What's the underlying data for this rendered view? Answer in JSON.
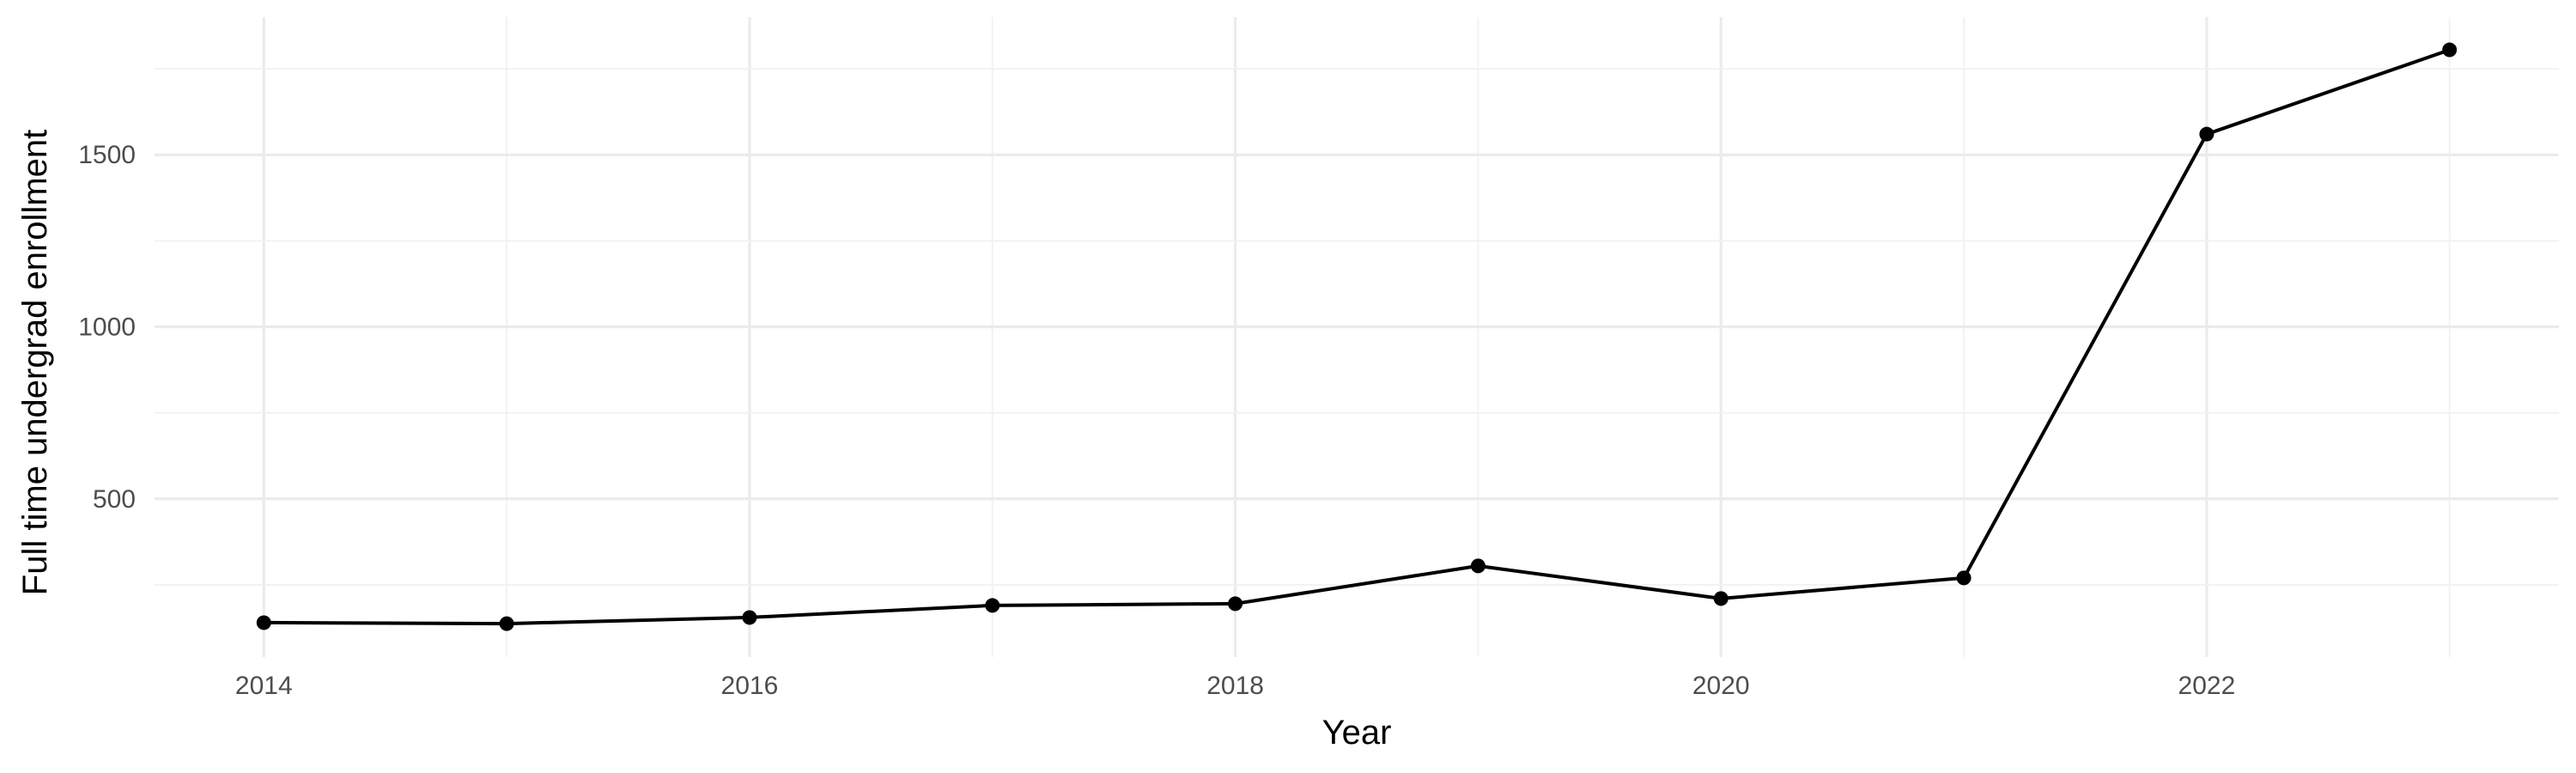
{
  "chart_data": {
    "type": "line",
    "title": "",
    "xlabel": "Year",
    "ylabel": "Full time undergrad enrollment",
    "x": [
      2014,
      2015,
      2016,
      2017,
      2018,
      2019,
      2020,
      2021,
      2022,
      2023
    ],
    "series": [
      {
        "values": [
          140,
          137,
          155,
          190,
          195,
          305,
          210,
          270,
          1560,
          1805
        ]
      }
    ],
    "x_ticks": [
      "2014",
      "2016",
      "2018",
      "2020",
      "2022"
    ],
    "y_ticks": [
      "500",
      "1000",
      "1500"
    ],
    "xlim": [
      2013.55,
      2023.45
    ],
    "ylim": [
      40,
      1900
    ],
    "grid": true,
    "legend": "none",
    "colors": {
      "line": "#000000",
      "point": "#000000",
      "grid_major": "#ebebeb",
      "grid_minor": "#f2f2f2",
      "tick_text": "#4d4d4d",
      "background": "#ffffff"
    }
  }
}
